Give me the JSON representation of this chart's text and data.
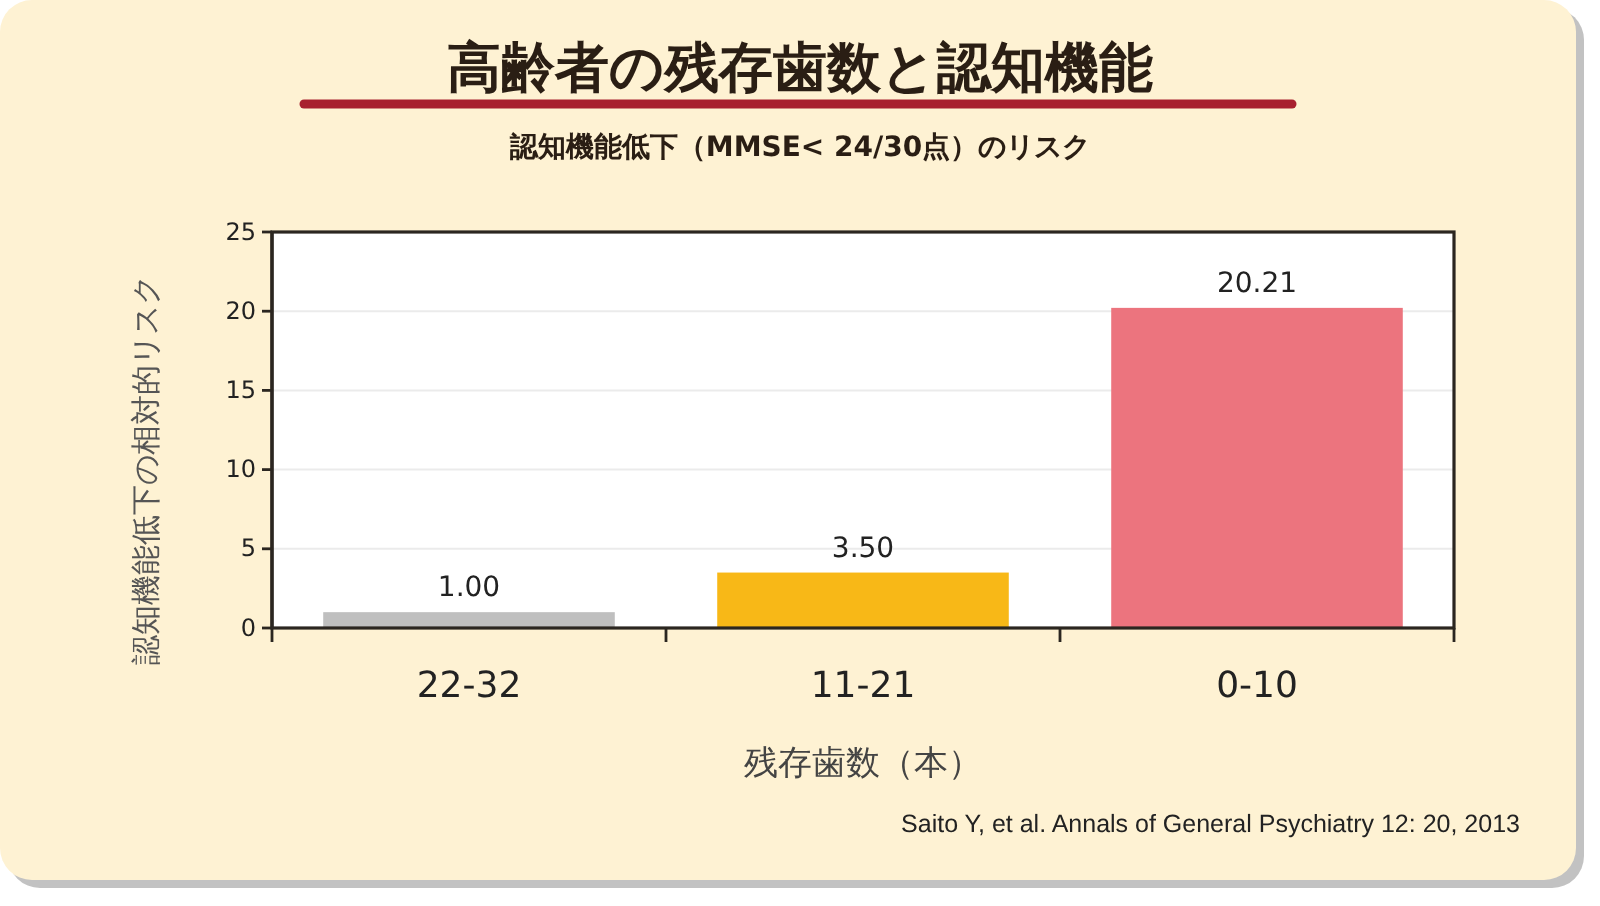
{
  "chart_data": {
    "type": "bar",
    "title": "高齢者の残存歯数と認知機能",
    "subtitle": "認知機能低下（MMSE< 24/30点）のリスク",
    "xlabel": "残存歯数（本）",
    "ylabel": "認知機能低下の相対的リスク",
    "categories": [
      "22-32",
      "11-21",
      "0-10"
    ],
    "values": [
      1,
      3.5,
      20.21
    ],
    "value_labels": [
      "1.00",
      "3.50",
      "20.21"
    ],
    "colors": [
      "#bfbfbf",
      "#f8b817",
      "#ec747e"
    ],
    "ylim": [
      0,
      25
    ],
    "yticks": [
      0,
      5,
      10,
      15,
      20,
      25
    ],
    "grid": "y",
    "annotations": [
      "Saito Y, et al. Annals of General Psychiatry 12: 20, 2013"
    ]
  }
}
